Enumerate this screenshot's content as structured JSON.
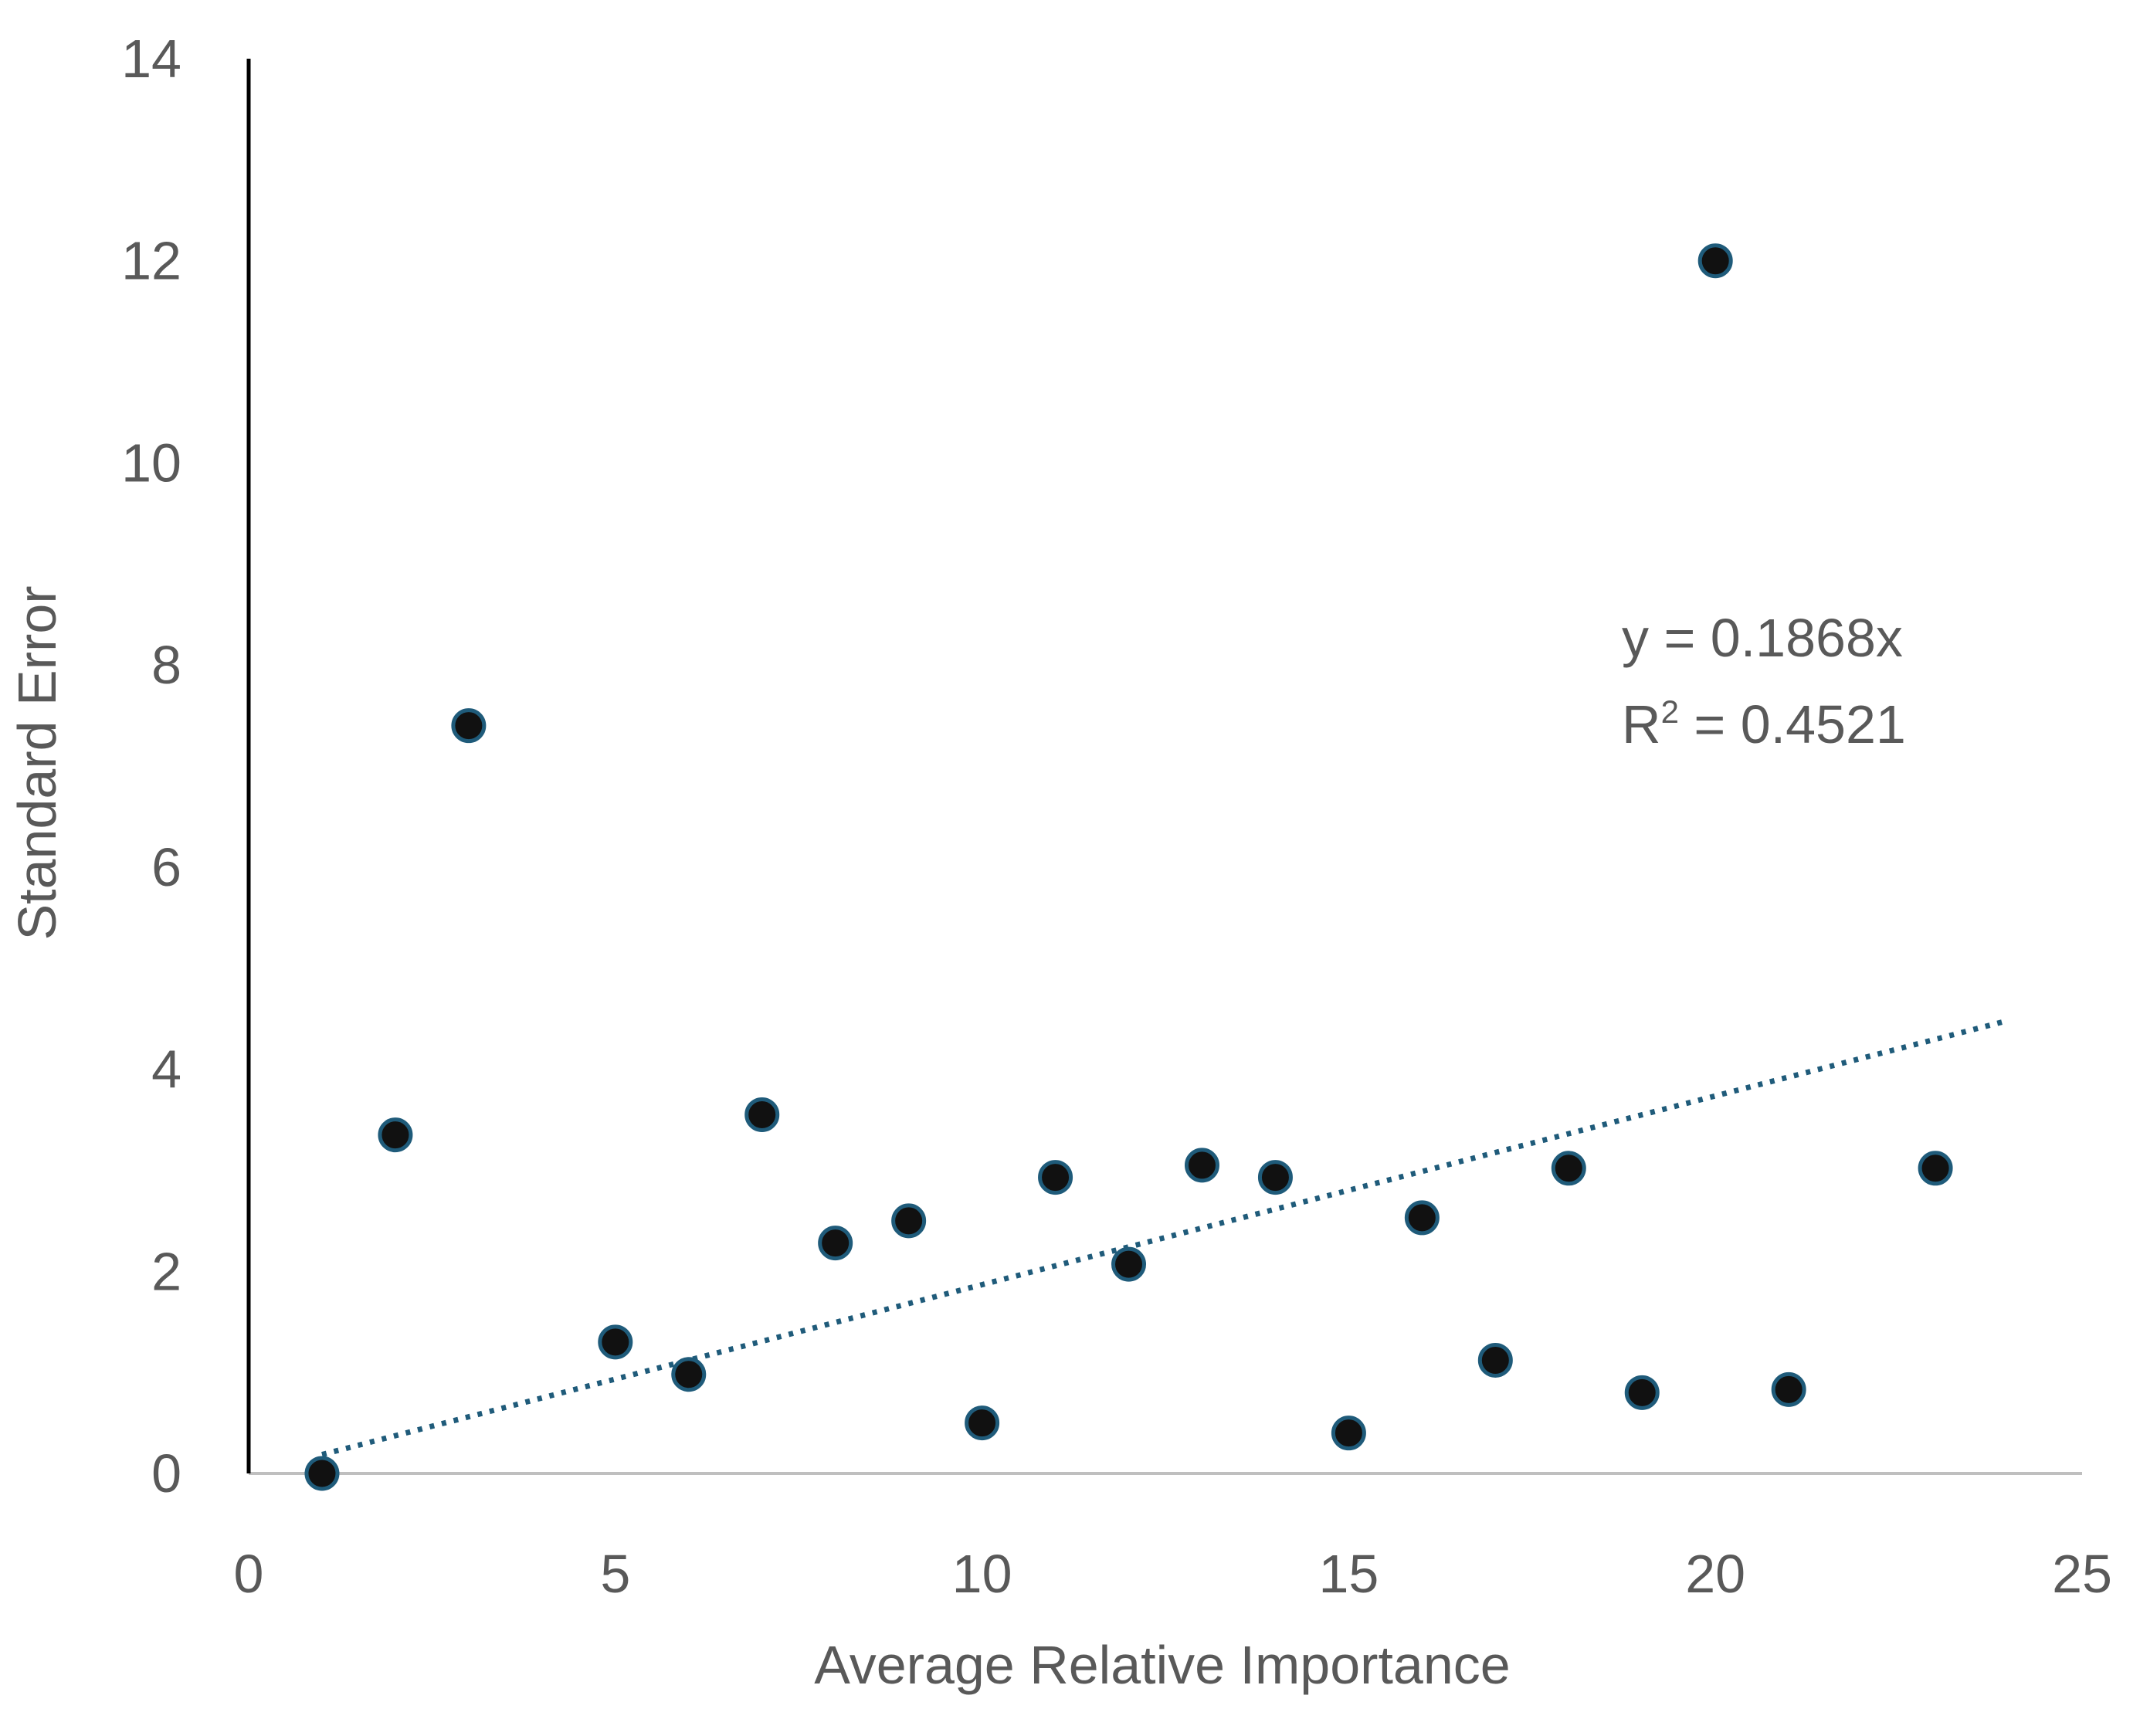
{
  "chart_data": {
    "type": "scatter",
    "title": "",
    "xlabel": "Average Relative Importance",
    "ylabel": "Standard Error",
    "xlim": [
      0,
      25
    ],
    "ylim": [
      0,
      14
    ],
    "x_ticks": [
      "0",
      "5",
      "10",
      "15",
      "20",
      "25"
    ],
    "y_ticks": [
      "0",
      "2",
      "4",
      "6",
      "8",
      "10",
      "12",
      "14"
    ],
    "grid": false,
    "legend": "none",
    "series": [
      {
        "points": [
          {
            "x": 1,
            "y": 0.0
          },
          {
            "x": 2,
            "y": 3.35
          },
          {
            "x": 3,
            "y": 7.4
          },
          {
            "x": 5,
            "y": 1.3
          },
          {
            "x": 6,
            "y": 0.98
          },
          {
            "x": 7,
            "y": 3.55
          },
          {
            "x": 8,
            "y": 2.28
          },
          {
            "x": 9,
            "y": 2.5
          },
          {
            "x": 10,
            "y": 0.5
          },
          {
            "x": 11,
            "y": 2.93
          },
          {
            "x": 12,
            "y": 2.07
          },
          {
            "x": 13,
            "y": 3.05
          },
          {
            "x": 14,
            "y": 2.93
          },
          {
            "x": 15,
            "y": 0.4
          },
          {
            "x": 16,
            "y": 2.53
          },
          {
            "x": 17,
            "y": 1.12
          },
          {
            "x": 18,
            "y": 3.02
          },
          {
            "x": 19,
            "y": 0.8
          },
          {
            "x": 20,
            "y": 12.0
          },
          {
            "x": 21,
            "y": 0.83
          },
          {
            "x": 23,
            "y": 3.02
          }
        ]
      }
    ],
    "trendline": {
      "slope": 0.1868,
      "x_range": [
        1,
        24
      ],
      "style": "dotted",
      "equation_label": "y = 0.1868x",
      "r2_prefix": "R",
      "r2_sup": "2",
      "r2_value": " = 0.4521",
      "color": "#1f5b7a"
    },
    "colors": {
      "point_fill": "#111111",
      "point_stroke": "#1f5b7a",
      "y_axis": "#000000",
      "x_axis": "#bfbfbf",
      "text": "#595959"
    }
  }
}
